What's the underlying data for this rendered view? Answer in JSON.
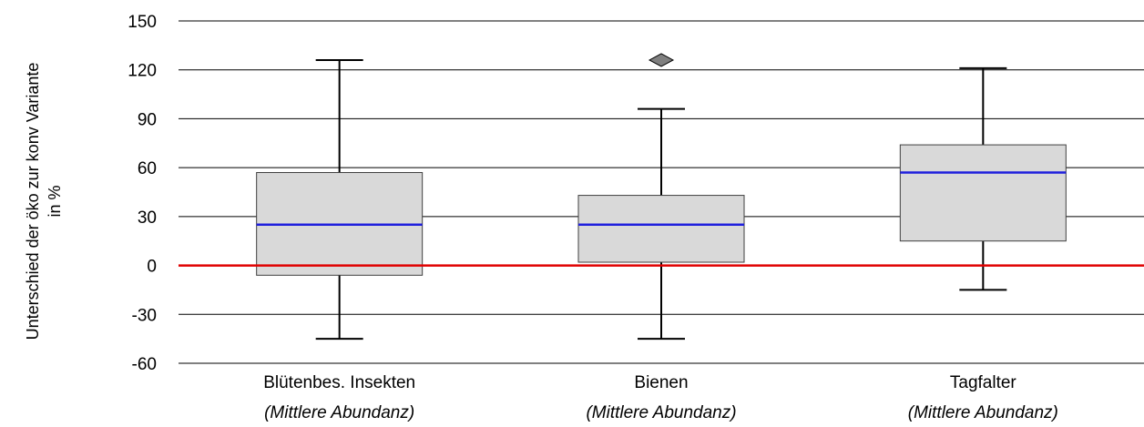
{
  "chart_data": {
    "type": "boxplot",
    "ylabel": [
      "Unterschied der öko zur konv Variante",
      "in %"
    ],
    "ylim": [
      -60,
      150
    ],
    "yticks": [
      150,
      120,
      90,
      60,
      30,
      0,
      -30,
      -60
    ],
    "grid": true,
    "reference_line": {
      "y": 0,
      "color": "#e00000"
    },
    "box_fill": "#d9d9d9",
    "median_color": "#1f1fdd",
    "outlier_color": "#808080",
    "categories": [
      {
        "label": "Blütenbes. Insekten",
        "sublabel": "(Mittlere Abundanz)"
      },
      {
        "label": "Bienen",
        "sublabel": "(Mittlere Abundanz)"
      },
      {
        "label": "Tagfalter",
        "sublabel": "(Mittlere Abundanz)"
      }
    ],
    "boxes": [
      {
        "whisker_low": -45,
        "q1": -6,
        "median": 25,
        "q3": 57,
        "whisker_high": 126,
        "outliers": []
      },
      {
        "whisker_low": -45,
        "q1": 2,
        "median": 25,
        "q3": 43,
        "whisker_high": 96,
        "outliers": [
          126
        ]
      },
      {
        "whisker_low": -15,
        "q1": 15,
        "median": 57,
        "q3": 74,
        "whisker_high": 121,
        "outliers": []
      }
    ]
  }
}
